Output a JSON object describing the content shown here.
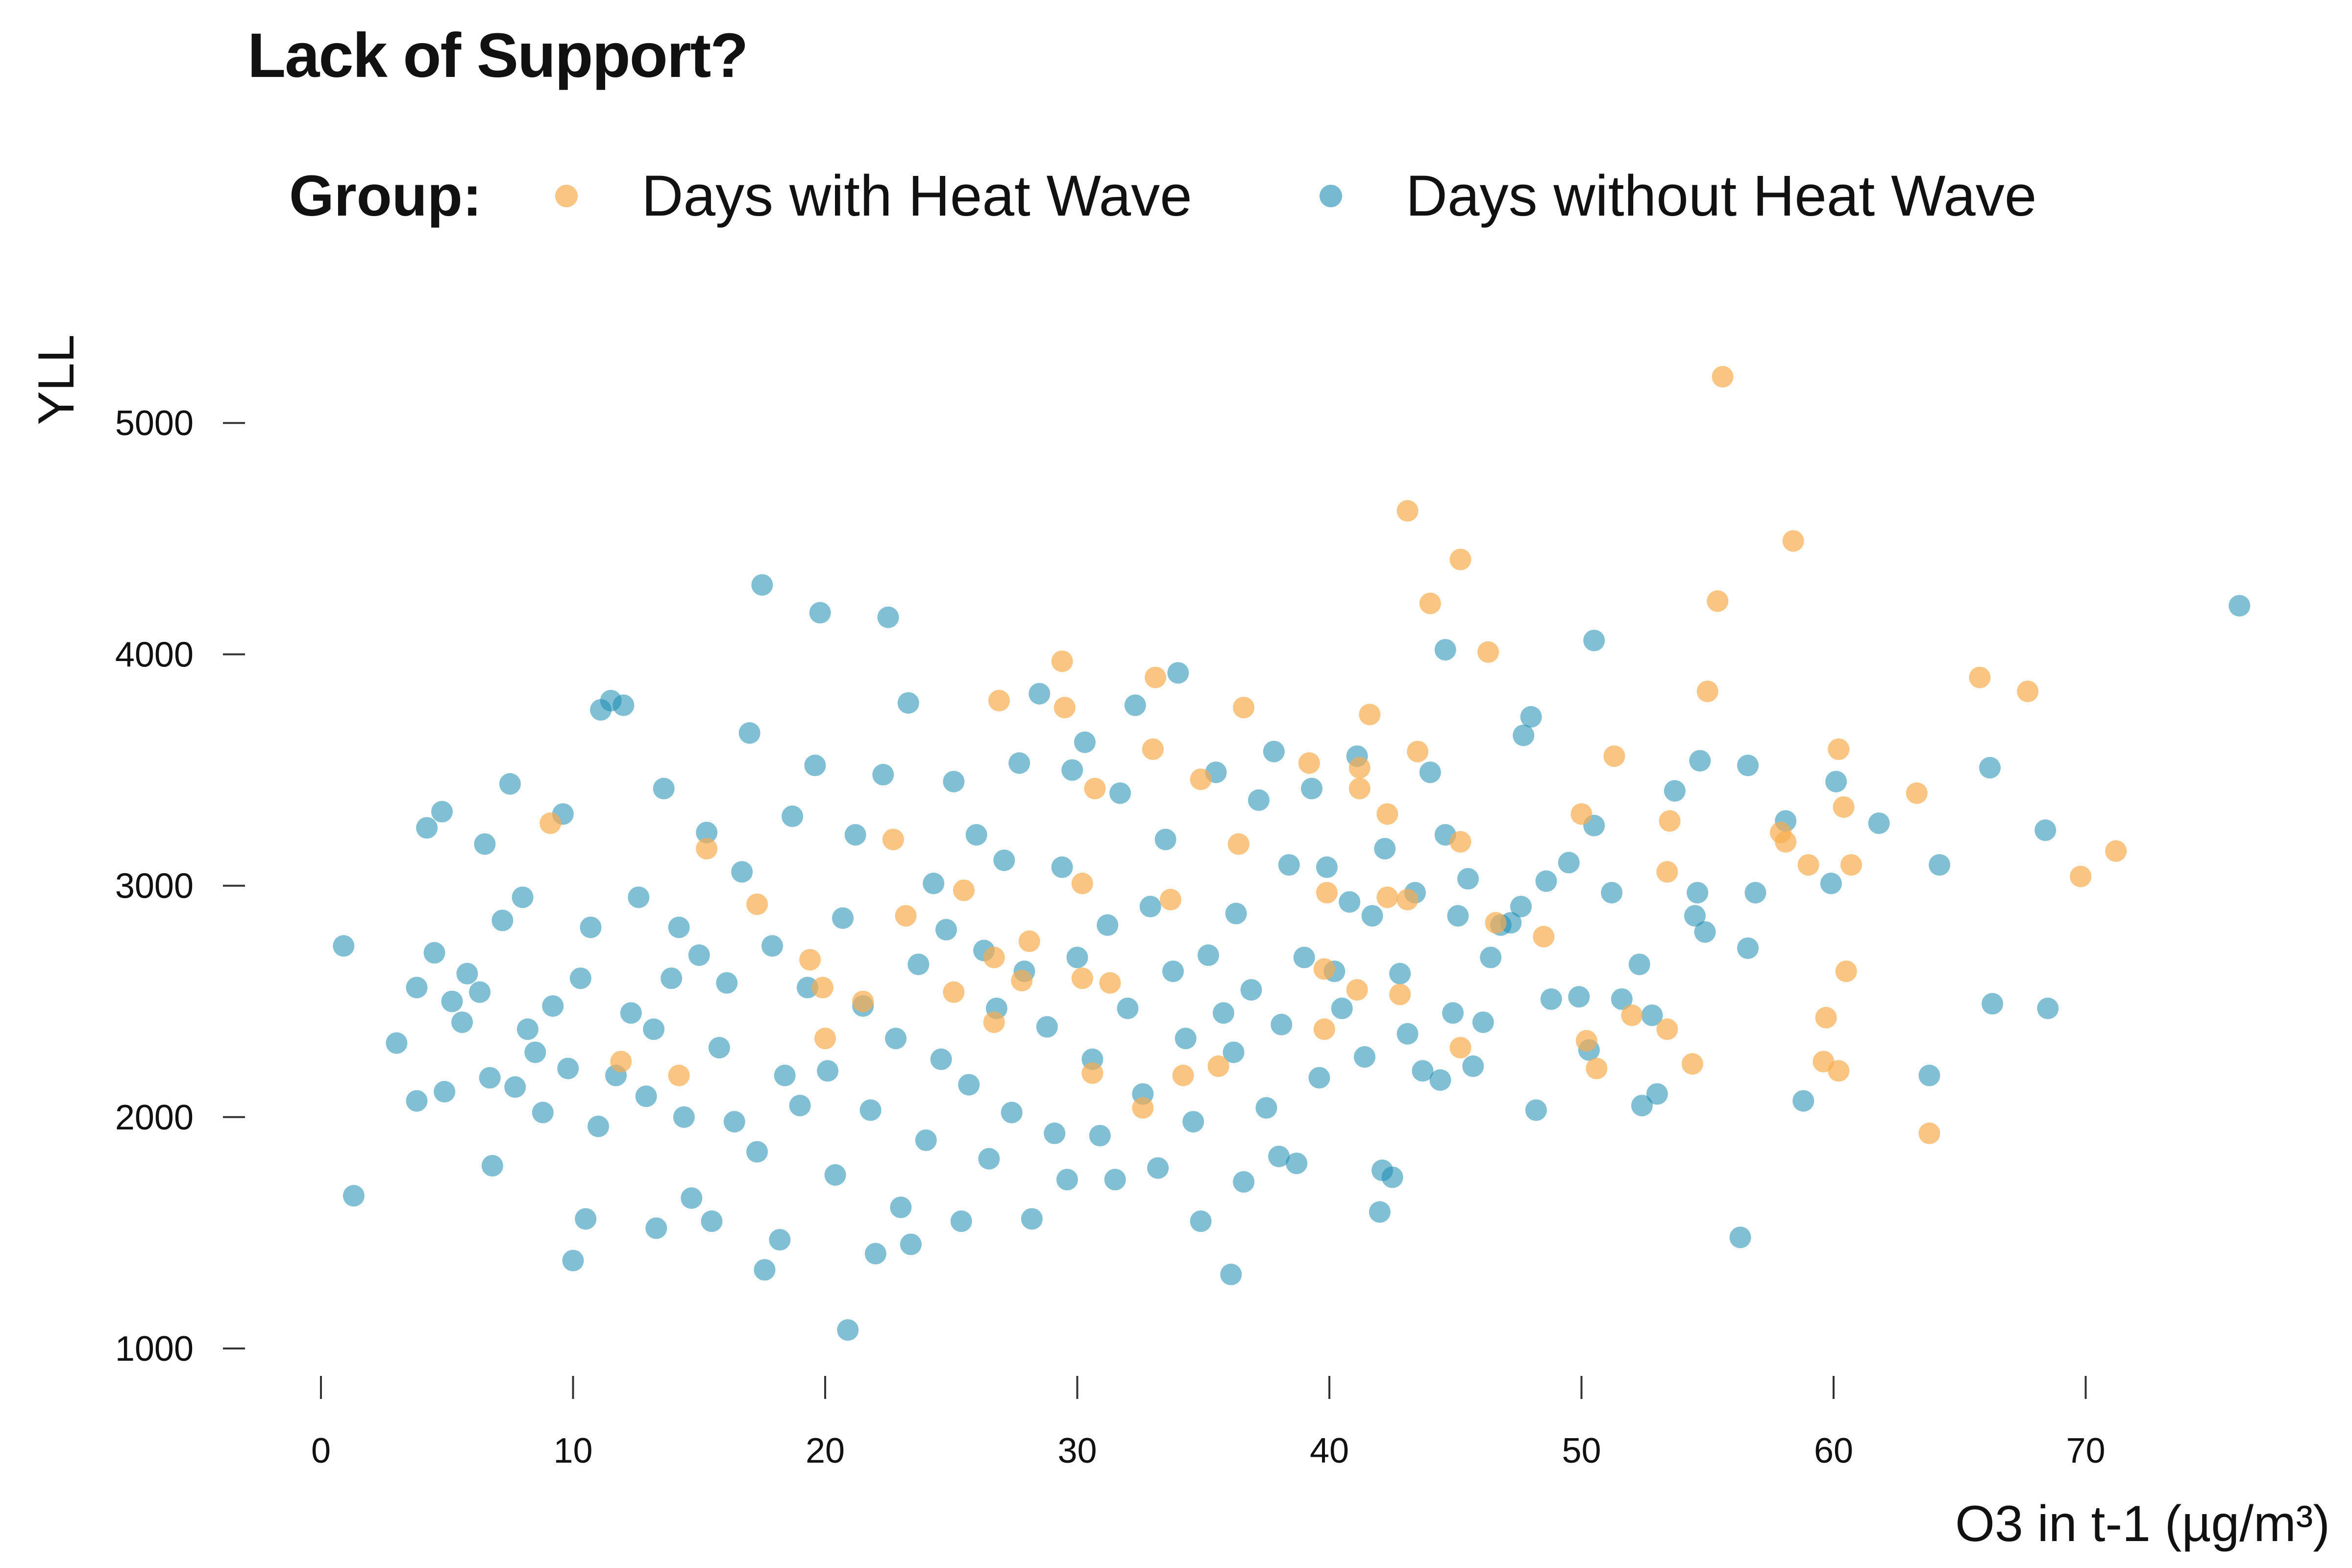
{
  "chart_data": {
    "type": "scatter",
    "title": "Lack of Support?",
    "xlabel": "O3 in t-1 (µg/m³)",
    "ylabel": "YLL",
    "xlim": [
      -2,
      80
    ],
    "ylim": [
      850,
      5600
    ],
    "xticks": [
      0,
      10,
      20,
      30,
      40,
      50,
      60,
      70
    ],
    "yticks": [
      1000,
      2000,
      3000,
      4000,
      5000
    ],
    "grid": false,
    "legend_title": "Group:",
    "legend_position": "top",
    "series": [
      {
        "name": "Days with Heat Wave",
        "color": "#F8AC4E",
        "points": [
          [
            55.6,
            5200
          ],
          [
            43.1,
            4620
          ],
          [
            58.4,
            4490
          ],
          [
            45.2,
            4410
          ],
          [
            44.0,
            4220
          ],
          [
            55.4,
            4230
          ],
          [
            46.3,
            4010
          ],
          [
            29.4,
            3970
          ],
          [
            33.1,
            3900
          ],
          [
            65.8,
            3900
          ],
          [
            67.7,
            3840
          ],
          [
            55.0,
            3840
          ],
          [
            26.9,
            3800
          ],
          [
            36.6,
            3770
          ],
          [
            29.5,
            3770
          ],
          [
            41.6,
            3740
          ],
          [
            33.0,
            3590
          ],
          [
            43.5,
            3580
          ],
          [
            51.3,
            3560
          ],
          [
            60.2,
            3590
          ],
          [
            39.2,
            3530
          ],
          [
            41.2,
            3510
          ],
          [
            34.9,
            3460
          ],
          [
            63.3,
            3400
          ],
          [
            41.2,
            3420
          ],
          [
            30.7,
            3420
          ],
          [
            9.1,
            3270
          ],
          [
            42.3,
            3310
          ],
          [
            50.0,
            3310
          ],
          [
            53.5,
            3280
          ],
          [
            60.4,
            3340
          ],
          [
            45.2,
            3190
          ],
          [
            57.9,
            3230
          ],
          [
            58.1,
            3190
          ],
          [
            22.7,
            3200
          ],
          [
            36.4,
            3180
          ],
          [
            71.2,
            3150
          ],
          [
            59.0,
            3090
          ],
          [
            60.7,
            3090
          ],
          [
            69.8,
            3040
          ],
          [
            53.4,
            3060
          ],
          [
            30.2,
            3010
          ],
          [
            25.5,
            2980
          ],
          [
            39.9,
            2970
          ],
          [
            42.3,
            2950
          ],
          [
            43.1,
            2940
          ],
          [
            33.7,
            2940
          ],
          [
            17.3,
            2920
          ],
          [
            23.2,
            2870
          ],
          [
            46.6,
            2840
          ],
          [
            48.5,
            2780
          ],
          [
            28.1,
            2760
          ],
          [
            19.4,
            2680
          ],
          [
            26.7,
            2690
          ],
          [
            39.8,
            2640
          ],
          [
            30.2,
            2600
          ],
          [
            60.5,
            2630
          ],
          [
            41.1,
            2550
          ],
          [
            42.8,
            2530
          ],
          [
            19.9,
            2560
          ],
          [
            31.3,
            2580
          ],
          [
            59.7,
            2430
          ],
          [
            52.0,
            2440
          ],
          [
            26.7,
            2410
          ],
          [
            53.4,
            2380
          ],
          [
            39.8,
            2380
          ],
          [
            20.0,
            2340
          ],
          [
            50.2,
            2330
          ],
          [
            45.2,
            2300
          ],
          [
            59.6,
            2240
          ],
          [
            60.2,
            2200
          ],
          [
            50.6,
            2210
          ],
          [
            54.4,
            2230
          ],
          [
            35.6,
            2220
          ],
          [
            34.2,
            2180
          ],
          [
            30.6,
            2190
          ],
          [
            32.6,
            2040
          ],
          [
            63.8,
            1930
          ],
          [
            14.2,
            2180
          ],
          [
            15.3,
            3160
          ],
          [
            11.9,
            2240
          ],
          [
            27.8,
            2590
          ],
          [
            25.1,
            2540
          ],
          [
            21.5,
            2500
          ]
        ]
      },
      {
        "name": "Days without Heat Wave",
        "color": "#1A8BB2",
        "points": [
          [
            0.9,
            2740
          ],
          [
            1.3,
            1660
          ],
          [
            3.0,
            2320
          ],
          [
            3.8,
            2070
          ],
          [
            3.8,
            2560
          ],
          [
            4.2,
            3250
          ],
          [
            4.5,
            2710
          ],
          [
            4.8,
            3320
          ],
          [
            4.9,
            2110
          ],
          [
            5.2,
            2500
          ],
          [
            5.6,
            2410
          ],
          [
            5.8,
            2620
          ],
          [
            6.3,
            2540
          ],
          [
            6.5,
            3180
          ],
          [
            6.7,
            2170
          ],
          [
            6.8,
            1790
          ],
          [
            7.2,
            2850
          ],
          [
            7.5,
            3440
          ],
          [
            7.7,
            2130
          ],
          [
            8.0,
            2950
          ],
          [
            8.2,
            2380
          ],
          [
            8.5,
            2280
          ],
          [
            8.8,
            2020
          ],
          [
            9.2,
            2480
          ],
          [
            9.6,
            3310
          ],
          [
            9.8,
            2210
          ],
          [
            10.0,
            1380
          ],
          [
            10.3,
            2600
          ],
          [
            10.5,
            1560
          ],
          [
            10.7,
            2820
          ],
          [
            11.0,
            1960
          ],
          [
            11.1,
            3760
          ],
          [
            11.5,
            3800
          ],
          [
            11.7,
            2180
          ],
          [
            12.0,
            3780
          ],
          [
            12.3,
            2450
          ],
          [
            12.6,
            2950
          ],
          [
            12.9,
            2090
          ],
          [
            13.2,
            2380
          ],
          [
            13.3,
            1520
          ],
          [
            13.6,
            3420
          ],
          [
            13.9,
            2600
          ],
          [
            14.2,
            2820
          ],
          [
            14.4,
            2000
          ],
          [
            14.7,
            1650
          ],
          [
            15.0,
            2700
          ],
          [
            15.3,
            3230
          ],
          [
            15.5,
            1550
          ],
          [
            15.8,
            2300
          ],
          [
            16.1,
            2580
          ],
          [
            16.4,
            1980
          ],
          [
            16.7,
            3060
          ],
          [
            17.0,
            3660
          ],
          [
            17.3,
            1850
          ],
          [
            17.5,
            4300
          ],
          [
            17.6,
            1340
          ],
          [
            17.9,
            2740
          ],
          [
            18.2,
            1470
          ],
          [
            18.4,
            2180
          ],
          [
            18.7,
            3300
          ],
          [
            19.0,
            2050
          ],
          [
            19.3,
            2560
          ],
          [
            19.6,
            3520
          ],
          [
            19.8,
            4180
          ],
          [
            20.1,
            2200
          ],
          [
            20.4,
            1750
          ],
          [
            20.7,
            2860
          ],
          [
            20.9,
            1080
          ],
          [
            21.2,
            3220
          ],
          [
            21.5,
            2480
          ],
          [
            21.8,
            2030
          ],
          [
            22.0,
            1410
          ],
          [
            22.3,
            3480
          ],
          [
            22.5,
            4160
          ],
          [
            22.8,
            2340
          ],
          [
            23.0,
            1610
          ],
          [
            23.3,
            3790
          ],
          [
            23.4,
            1450
          ],
          [
            23.7,
            2660
          ],
          [
            24.0,
            1900
          ],
          [
            24.3,
            3010
          ],
          [
            24.6,
            2250
          ],
          [
            24.8,
            2810
          ],
          [
            25.1,
            3450
          ],
          [
            25.4,
            1550
          ],
          [
            25.7,
            2140
          ],
          [
            26.0,
            3220
          ],
          [
            26.3,
            2720
          ],
          [
            26.5,
            1820
          ],
          [
            26.8,
            2470
          ],
          [
            27.1,
            3110
          ],
          [
            27.4,
            2020
          ],
          [
            27.7,
            3530
          ],
          [
            27.9,
            2630
          ],
          [
            28.2,
            1560
          ],
          [
            28.5,
            3830
          ],
          [
            28.8,
            2390
          ],
          [
            29.1,
            1930
          ],
          [
            29.4,
            3080
          ],
          [
            29.6,
            1730
          ],
          [
            30.0,
            2690
          ],
          [
            30.3,
            3620
          ],
          [
            30.6,
            2250
          ],
          [
            30.9,
            1920
          ],
          [
            31.2,
            2830
          ],
          [
            31.5,
            1730
          ],
          [
            31.7,
            3400
          ],
          [
            32.0,
            2470
          ],
          [
            32.3,
            3780
          ],
          [
            32.6,
            2100
          ],
          [
            32.9,
            2910
          ],
          [
            33.2,
            1780
          ],
          [
            33.5,
            3200
          ],
          [
            33.8,
            2630
          ],
          [
            34.0,
            3920
          ],
          [
            34.3,
            2340
          ],
          [
            34.6,
            1980
          ],
          [
            34.9,
            1550
          ],
          [
            35.2,
            2700
          ],
          [
            35.5,
            3490
          ],
          [
            35.8,
            2450
          ],
          [
            36.1,
            1320
          ],
          [
            36.3,
            2880
          ],
          [
            36.6,
            1720
          ],
          [
            36.9,
            2550
          ],
          [
            37.2,
            3370
          ],
          [
            37.5,
            2040
          ],
          [
            37.8,
            3580
          ],
          [
            38.1,
            2400
          ],
          [
            38.4,
            3090
          ],
          [
            38.7,
            1800
          ],
          [
            39.0,
            2690
          ],
          [
            39.3,
            3420
          ],
          [
            39.6,
            2170
          ],
          [
            39.9,
            3080
          ],
          [
            40.2,
            2630
          ],
          [
            40.5,
            2470
          ],
          [
            40.8,
            2930
          ],
          [
            41.1,
            3560
          ],
          [
            41.4,
            2260
          ],
          [
            41.7,
            2870
          ],
          [
            42.0,
            1590
          ],
          [
            42.2,
            3160
          ],
          [
            42.5,
            1740
          ],
          [
            42.8,
            2620
          ],
          [
            43.1,
            2360
          ],
          [
            43.4,
            2970
          ],
          [
            43.7,
            2200
          ],
          [
            44.0,
            3490
          ],
          [
            44.4,
            2160
          ],
          [
            44.6,
            4020
          ],
          [
            44.9,
            2450
          ],
          [
            45.1,
            2870
          ],
          [
            45.5,
            3030
          ],
          [
            45.7,
            2220
          ],
          [
            46.1,
            2410
          ],
          [
            46.4,
            2690
          ],
          [
            46.8,
            2830
          ],
          [
            47.2,
            2840
          ],
          [
            47.6,
            2910
          ],
          [
            47.7,
            3650
          ],
          [
            48.0,
            3730
          ],
          [
            48.2,
            2030
          ],
          [
            48.6,
            3020
          ],
          [
            48.8,
            2510
          ],
          [
            49.5,
            3100
          ],
          [
            49.9,
            2520
          ],
          [
            50.3,
            2290
          ],
          [
            50.5,
            3260
          ],
          [
            50.5,
            4060
          ],
          [
            51.2,
            2970
          ],
          [
            51.6,
            2510
          ],
          [
            52.3,
            2660
          ],
          [
            52.4,
            2050
          ],
          [
            52.8,
            2440
          ],
          [
            53.0,
            2100
          ],
          [
            53.7,
            3410
          ],
          [
            54.5,
            2870
          ],
          [
            54.6,
            2970
          ],
          [
            54.7,
            3540
          ],
          [
            54.9,
            2800
          ],
          [
            56.3,
            1480
          ],
          [
            56.6,
            3520
          ],
          [
            56.9,
            2970
          ],
          [
            58.1,
            3280
          ],
          [
            58.8,
            2070
          ],
          [
            59.9,
            3010
          ],
          [
            60.1,
            3450
          ],
          [
            61.8,
            3270
          ],
          [
            63.8,
            2180
          ],
          [
            64.2,
            3090
          ],
          [
            66.2,
            3510
          ],
          [
            66.3,
            2490
          ],
          [
            68.4,
            3240
          ],
          [
            68.5,
            2470
          ],
          [
            76.1,
            4210
          ],
          [
            56.6,
            2730
          ],
          [
            42.1,
            1770
          ],
          [
            44.6,
            3220
          ],
          [
            36.2,
            2280
          ],
          [
            38.0,
            1830
          ],
          [
            29.8,
            3500
          ]
        ]
      }
    ]
  }
}
